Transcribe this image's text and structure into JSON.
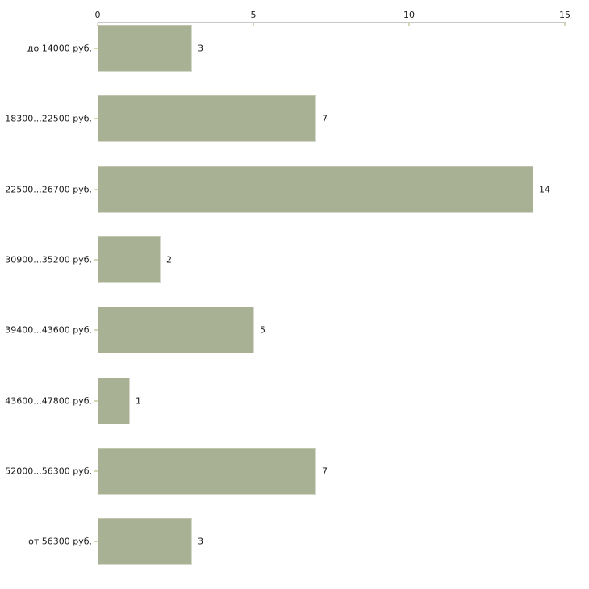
{
  "chart_data": {
    "type": "bar",
    "orientation": "horizontal",
    "title": "",
    "xlabel": "",
    "ylabel": "",
    "categories": [
      "до 14000 руб.",
      "18300...22500 руб.",
      "22500...26700 руб.",
      "30900...35200 руб.",
      "39400...43600 руб.",
      "43600...47800 руб.",
      "52000...56300 руб.",
      "от 56300 руб."
    ],
    "values": [
      3,
      7,
      14,
      2,
      5,
      1,
      7,
      3
    ],
    "value_labels_shown": true,
    "xlim": [
      0,
      15
    ],
    "x_ticks": [
      0,
      5,
      10,
      15
    ],
    "grid": false,
    "legend": "none",
    "axis_position": "top",
    "colors": {
      "bar": "#a9b194",
      "bar_edge": "#d5d8ca",
      "bar_edge_light": "#c2c6ae",
      "axis_line": "#c8c8c8",
      "tick": "#d6d8b4",
      "text": "#1a1a1a",
      "background": "#ffffff"
    }
  }
}
